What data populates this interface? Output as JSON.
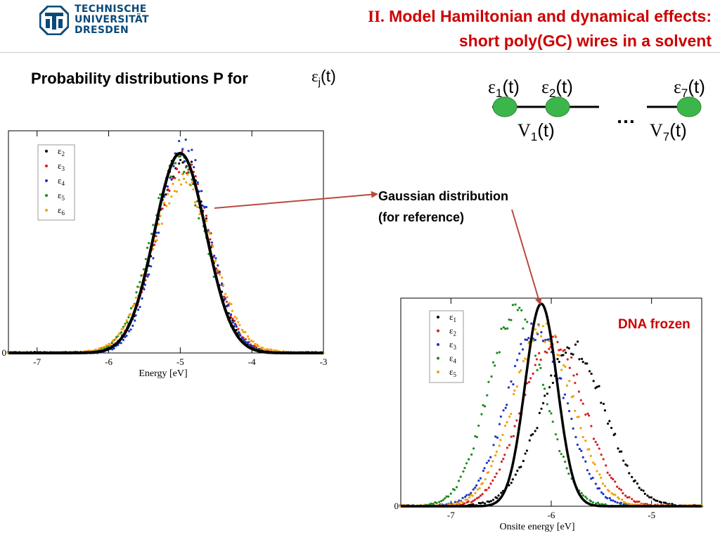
{
  "header": {
    "logo_lines": [
      "TECHNISCHE",
      "UNIVERSITÄT",
      "DRESDEN"
    ],
    "title_roman": "II.",
    "title_line1": " Model Hamiltonian and dynamical effects:",
    "title_line2": "short poly(GC) wires in a solvent"
  },
  "subtitle": {
    "text": "Probability distributions P for",
    "symbol": "ε",
    "subscript": "j",
    "suffix": "(t)"
  },
  "chain": {
    "site_labels": [
      {
        "sym": "ε",
        "sub": "1",
        "suffix": "(t)"
      },
      {
        "sym": "ε",
        "sub": "2",
        "suffix": "(t)"
      },
      {
        "sym": "ε",
        "sub": "7",
        "suffix": "(t)"
      }
    ],
    "bond_labels": [
      {
        "sym": "V",
        "sub": "1",
        "suffix": "(t)"
      },
      {
        "sym": "V",
        "sub": "7",
        "suffix": "(t)"
      }
    ],
    "ellipsis": "…",
    "node_color": "#3cb64a"
  },
  "annotation": {
    "line1": "Gaussian distribution",
    "line2": "(for reference)"
  },
  "dna_label": "DNA frozen",
  "arrow_color": "#b94a3f",
  "chart_data": [
    {
      "type": "scatter",
      "title": "",
      "xlabel": "Energy [eV]",
      "ylabel": "",
      "xlim": [
        -7.4,
        -3.0
      ],
      "x_ticks": [
        -7,
        -6,
        -5,
        -4,
        -3
      ],
      "y_ticks": [
        0
      ],
      "grid": false,
      "legend_position": "top-left",
      "reference_curve": {
        "type": "gaussian",
        "mean": -5.0,
        "sigma": 0.36,
        "peak": 1.0,
        "color": "#000000"
      },
      "series": [
        {
          "name": "ε",
          "sub": "2",
          "color": "#000000",
          "mean": -4.98,
          "sigma": 0.37,
          "peak": 0.98
        },
        {
          "name": "ε",
          "sub": "3",
          "color": "#d62020",
          "mean": -4.97,
          "sigma": 0.38,
          "peak": 0.96
        },
        {
          "name": "ε",
          "sub": "4",
          "color": "#1a35c8",
          "mean": -4.95,
          "sigma": 0.36,
          "peak": 1.02
        },
        {
          "name": "ε",
          "sub": "5",
          "color": "#1e8a1e",
          "mean": -5.03,
          "sigma": 0.38,
          "peak": 0.95
        },
        {
          "name": "ε",
          "sub": "6",
          "color": "#f5a000",
          "mean": -4.97,
          "sigma": 0.42,
          "peak": 0.86
        }
      ]
    },
    {
      "type": "scatter",
      "title": "",
      "xlabel": "Onsite energy [eV]",
      "ylabel": "",
      "xlim": [
        -7.5,
        -4.5
      ],
      "x_ticks": [
        -7,
        -6,
        -5
      ],
      "y_ticks": [
        0
      ],
      "grid": false,
      "legend_position": "top-left",
      "reference_curve": {
        "type": "gaussian",
        "mean": -6.1,
        "sigma": 0.16,
        "peak": 1.0,
        "color": "#000000"
      },
      "series": [
        {
          "name": "ε",
          "sub": "1",
          "color": "#000000",
          "mean": -5.78,
          "sigma": 0.32,
          "peak": 0.78
        },
        {
          "name": "ε",
          "sub": "2",
          "color": "#d62020",
          "mean": -5.98,
          "sigma": 0.31,
          "peak": 0.82
        },
        {
          "name": "ε",
          "sub": "3",
          "color": "#1a35c8",
          "mean": -6.15,
          "sigma": 0.29,
          "peak": 0.87
        },
        {
          "name": "ε",
          "sub": "4",
          "color": "#1e8a1e",
          "mean": -6.35,
          "sigma": 0.28,
          "peak": 0.95
        },
        {
          "name": "ε",
          "sub": "5",
          "color": "#f5a000",
          "mean": -6.08,
          "sigma": 0.3,
          "peak": 0.86
        }
      ]
    }
  ]
}
